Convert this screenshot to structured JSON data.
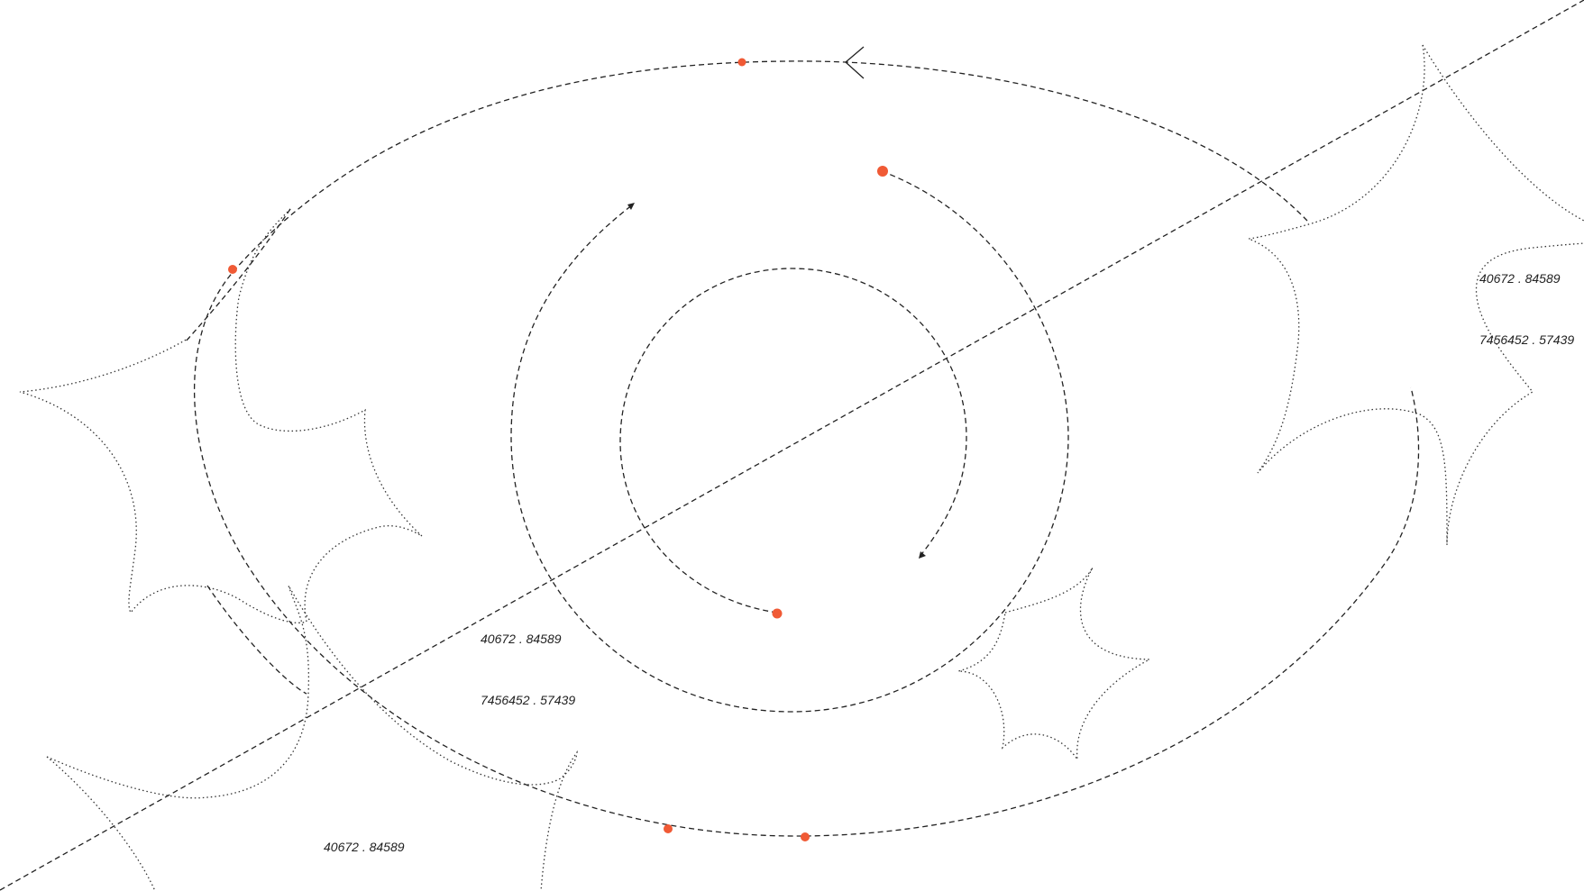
{
  "colors": {
    "accent": "#f05a35",
    "line": "#222222",
    "background": "#ffffff"
  },
  "labels": [
    {
      "id": "label-1",
      "text": "40672 . 84589"
    },
    {
      "id": "label-2",
      "text": "7456452 . 57439"
    },
    {
      "id": "label-3",
      "text": "40672 . 84589"
    },
    {
      "id": "label-4",
      "text": "7456452 . 57439"
    },
    {
      "id": "label-5",
      "text": "40672 . 84589"
    }
  ]
}
